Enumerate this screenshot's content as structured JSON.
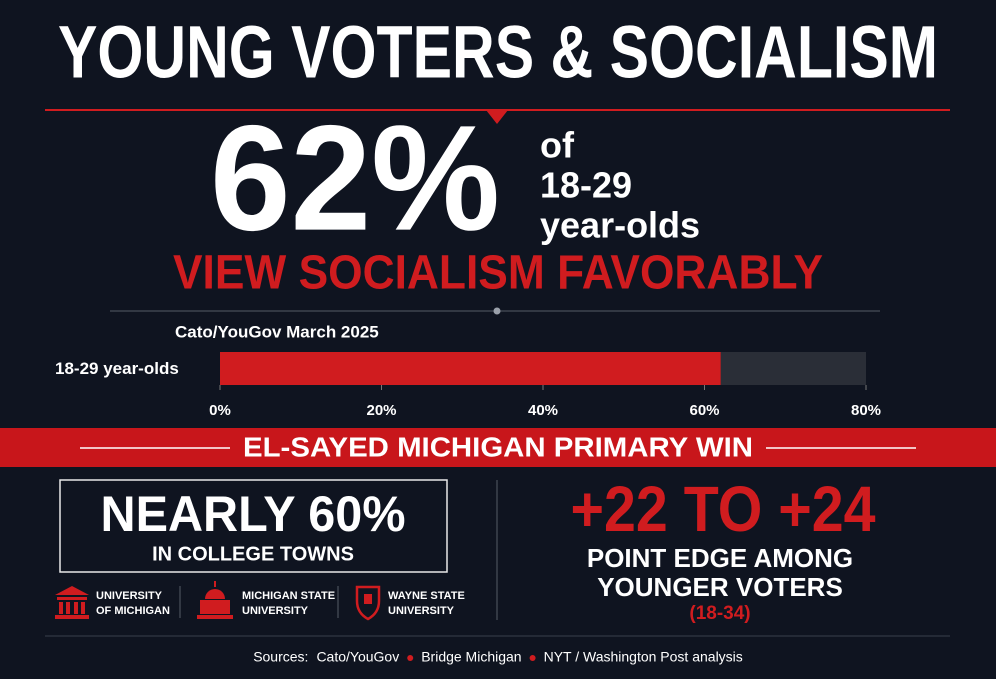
{
  "header": {
    "title": "YOUNG VOTERS & SOCIALISM"
  },
  "headline": {
    "stat": "62%",
    "lines": [
      "of",
      "18-29",
      "year-olds"
    ],
    "statement": "VIEW SOCIALISM FAVORABLY"
  },
  "chart_data": {
    "type": "bar",
    "orientation": "horizontal",
    "subtitle": "Cato/YouGov March 2025",
    "categories": [
      "18-29 year-olds"
    ],
    "values": [
      62
    ],
    "color": "#d01c1f",
    "xlim": [
      0,
      80
    ],
    "xticks": [
      {
        "value": 0,
        "label": "0%"
      },
      {
        "value": 20,
        "label": "20%"
      },
      {
        "value": 40,
        "label": "40%"
      },
      {
        "value": 60,
        "label": "60%"
      },
      {
        "value": 80,
        "label": "80%"
      }
    ]
  },
  "banner": {
    "title": "EL-SAYED MICHIGAN PRIMARY WIN"
  },
  "left_panel": {
    "stat": "NEARLY 60%",
    "caption": "IN COLLEGE TOWNS",
    "universities": [
      [
        "UNIVERSITY",
        "OF MICHIGAN"
      ],
      [
        "MICHIGAN STATE",
        "UNIVERSITY"
      ],
      [
        "WAYNE STATE",
        "UNIVERSITY"
      ]
    ]
  },
  "right_panel": {
    "stat": "+22 TO +24",
    "lines": [
      "POINT EDGE AMONG",
      "YOUNGER VOTERS"
    ],
    "note": "(18-34)"
  },
  "footer": {
    "label": "Sources:",
    "sources": [
      "Cato/YouGov",
      "Bridge Michigan",
      "NYT / Washington Post analysis"
    ]
  }
}
